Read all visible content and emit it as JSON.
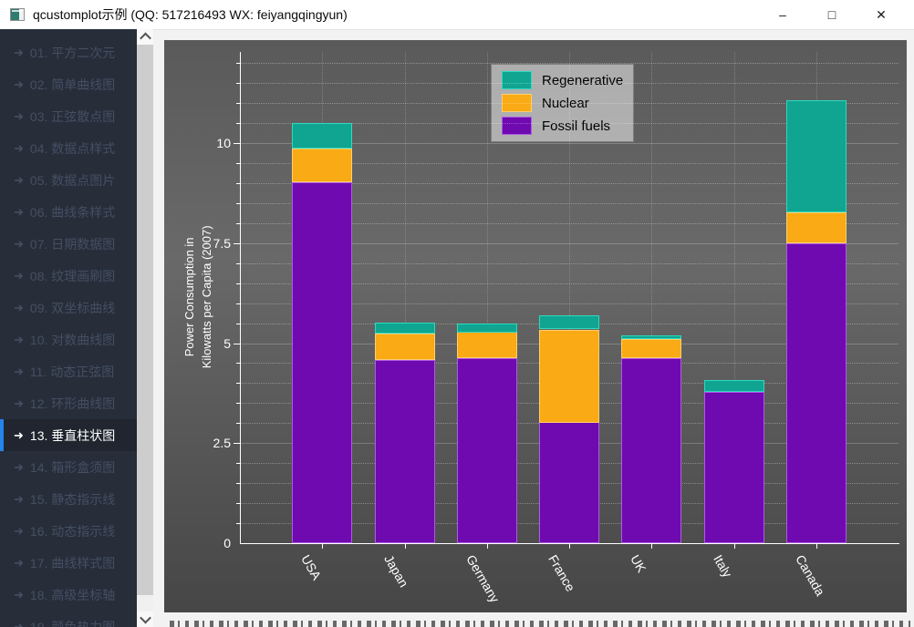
{
  "window": {
    "title": "qcustomplot示例 (QQ: 517216493 WX: feiyangqingyun)",
    "minimize_label": "–",
    "maximize_label": "□",
    "close_label": "✕"
  },
  "sidebar": {
    "arrow_icon": "➜",
    "items": [
      {
        "label": "01. 平方二次元",
        "selected": false
      },
      {
        "label": "02. 简单曲线图",
        "selected": false
      },
      {
        "label": "03. 正弦散点图",
        "selected": false
      },
      {
        "label": "04. 数据点样式",
        "selected": false
      },
      {
        "label": "05. 数据点图片",
        "selected": false
      },
      {
        "label": "06. 曲线条样式",
        "selected": false
      },
      {
        "label": "07. 日期数据图",
        "selected": false
      },
      {
        "label": "08. 纹理画刷图",
        "selected": false
      },
      {
        "label": "09. 双坐标曲线",
        "selected": false
      },
      {
        "label": "10. 对数曲线图",
        "selected": false
      },
      {
        "label": "11. 动态正弦图",
        "selected": false
      },
      {
        "label": "12. 环形曲线图",
        "selected": false
      },
      {
        "label": "13. 垂直柱状图",
        "selected": true
      },
      {
        "label": "14. 箱形盒须图",
        "selected": false
      },
      {
        "label": "15. 静态指示线",
        "selected": false
      },
      {
        "label": "16. 动态指示线",
        "selected": false
      },
      {
        "label": "17. 曲线样式图",
        "selected": false
      },
      {
        "label": "18. 高级坐标轴",
        "selected": false
      },
      {
        "label": "19. 颜色热力图",
        "selected": false
      }
    ]
  },
  "theme": {
    "accent_blue": "#2484e8",
    "sidebar_bg": "#272e3a",
    "sidebar_text": "#454f62",
    "selected_bg": "#20252f",
    "plot_bg_stops": [
      "#5a5a5a",
      "#696969",
      "#464646"
    ]
  },
  "chart_data": {
    "type": "bar",
    "stacked": true,
    "title": "",
    "xlabel": "",
    "ylabel_lines": [
      "Power Consumption in",
      "Kilowatts per Capita (2007)"
    ],
    "categories": [
      "USA",
      "Japan",
      "Germany",
      "France",
      "UK",
      "Italy",
      "Canada"
    ],
    "series": [
      {
        "name": "Fossil fuels",
        "color": "#6f09b0",
        "border_color": "#ae5be4",
        "values": [
          9.03,
          4.57,
          4.62,
          3.02,
          4.63,
          3.78,
          7.5
        ]
      },
      {
        "name": "Nuclear",
        "color": "#faaa14",
        "border_color": "#fdd06f",
        "values": [
          0.84,
          0.66,
          0.66,
          2.32,
          0.47,
          0,
          0.78
        ]
      },
      {
        "name": "Regenerative",
        "color": "#0fa591",
        "border_color": "#2fd9bf",
        "values": [
          0.63,
          0.28,
          0.22,
          0.35,
          0.1,
          0.29,
          2.8
        ]
      }
    ],
    "legend": {
      "position": "top-center",
      "entries": [
        "Regenerative",
        "Nuclear",
        "Fossil fuels"
      ]
    },
    "yticks": [
      0,
      2.5,
      5,
      7.5,
      10
    ],
    "ytick_labels": [
      "0",
      "2.5",
      "5",
      "7.5",
      "10"
    ],
    "ylim": [
      0,
      12.28
    ],
    "subtick_step": 0.5,
    "grid": true,
    "subgrid": true
  }
}
